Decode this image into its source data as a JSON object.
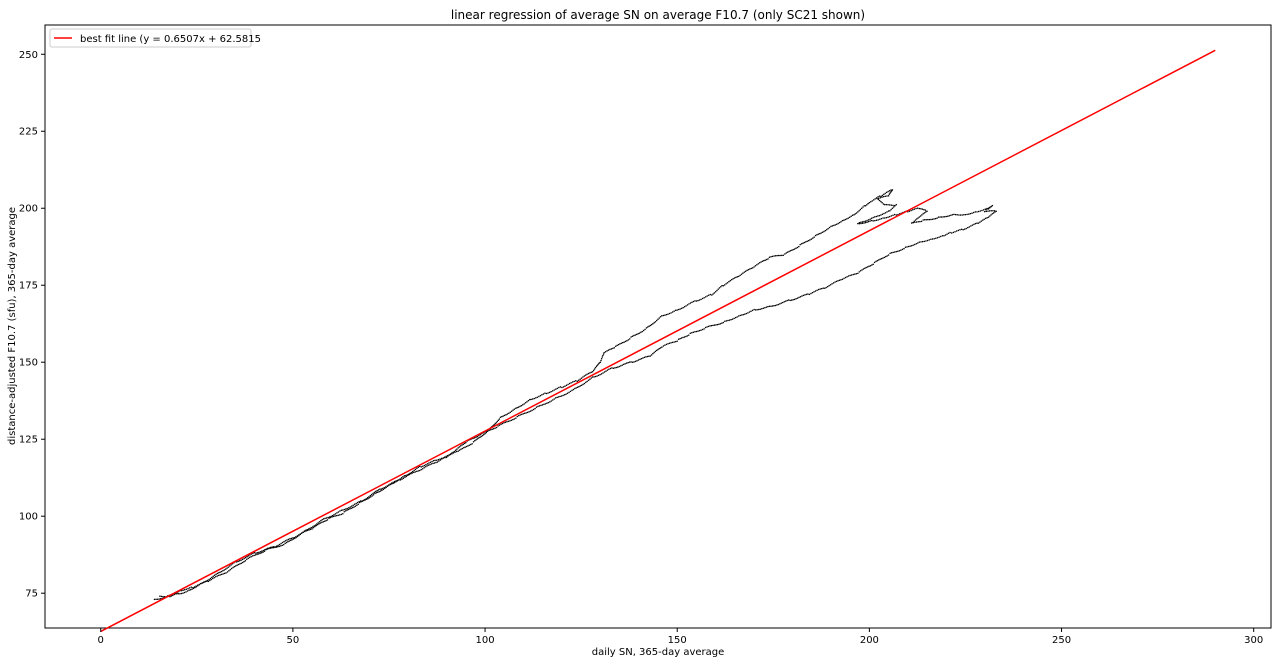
{
  "chart_data": {
    "type": "scatter",
    "title": "linear regression of average SN on average F10.7 (only SC21 shown)",
    "xlabel": "daily SN, 365-day average",
    "ylabel": "distance-adjusted F10.7 (sfu), 365-day average",
    "xlim": [
      -14.5,
      304.5
    ],
    "ylim": [
      63.7,
      259.5
    ],
    "xticks": [
      0,
      50,
      100,
      150,
      200,
      250,
      300
    ],
    "yticks": [
      75,
      100,
      125,
      150,
      175,
      200,
      250
    ],
    "yticks_all": [
      75,
      100,
      125,
      150,
      175,
      200,
      225,
      250
    ],
    "grid": false,
    "legend": {
      "placement": "top-left",
      "entries": [
        "best fit line (y = 0.6507x + 62.5815"
      ]
    },
    "fit_line": {
      "name": "best fit line (y = 0.6507x + 62.5815",
      "slope": 0.6507,
      "intercept": 62.5815,
      "x_range": [
        0,
        290
      ],
      "color": "#ff0000"
    },
    "scatter_color": "#000000",
    "rising_path": [
      [
        14,
        73
      ],
      [
        18,
        74
      ],
      [
        21,
        76
      ],
      [
        24,
        77
      ],
      [
        28,
        79
      ],
      [
        33,
        82
      ],
      [
        38,
        86
      ],
      [
        43,
        89
      ],
      [
        48,
        91
      ],
      [
        53,
        95
      ],
      [
        58,
        99
      ],
      [
        63,
        102
      ],
      [
        68,
        105
      ],
      [
        73,
        109
      ],
      [
        78,
        112
      ],
      [
        83,
        115
      ],
      [
        88,
        118
      ],
      [
        91,
        120
      ],
      [
        93,
        121
      ],
      [
        97,
        124
      ],
      [
        101,
        128
      ],
      [
        104,
        132
      ],
      [
        108,
        135
      ],
      [
        112,
        138
      ],
      [
        116,
        140
      ],
      [
        120,
        142
      ],
      [
        124,
        144
      ],
      [
        128,
        147
      ],
      [
        130,
        150
      ],
      [
        131,
        153
      ],
      [
        134,
        155
      ],
      [
        138,
        158
      ],
      [
        142,
        161
      ],
      [
        146,
        165
      ],
      [
        150,
        167
      ],
      [
        155,
        170
      ],
      [
        159,
        172
      ],
      [
        162,
        175
      ],
      [
        166,
        178
      ],
      [
        170,
        181
      ],
      [
        174,
        184
      ],
      [
        178,
        185
      ],
      [
        182,
        188
      ],
      [
        186,
        191
      ],
      [
        190,
        194
      ],
      [
        193,
        196
      ],
      [
        196,
        198
      ],
      [
        199,
        201
      ],
      [
        200,
        202
      ],
      [
        203,
        204
      ],
      [
        206,
        206
      ],
      [
        205,
        204
      ],
      [
        202,
        203
      ],
      [
        204,
        201
      ],
      [
        207,
        201
      ],
      [
        205,
        199
      ],
      [
        201,
        197
      ],
      [
        197,
        195
      ]
    ],
    "peak_path": [
      [
        197,
        195
      ],
      [
        201,
        196
      ],
      [
        204,
        197
      ],
      [
        207,
        198
      ],
      [
        210,
        199
      ],
      [
        213,
        200
      ],
      [
        215,
        199
      ],
      [
        213,
        197
      ],
      [
        211,
        195
      ],
      [
        214,
        196
      ],
      [
        218,
        197
      ],
      [
        222,
        198
      ],
      [
        225,
        198
      ],
      [
        228,
        199
      ],
      [
        231,
        200
      ],
      [
        232,
        201
      ],
      [
        230,
        199
      ],
      [
        233,
        199
      ],
      [
        231,
        197
      ],
      [
        228,
        195
      ],
      [
        224,
        193
      ],
      [
        221,
        192
      ],
      [
        219,
        191
      ],
      [
        216,
        190
      ],
      [
        213,
        189
      ]
    ],
    "declining_path": [
      [
        213,
        189
      ],
      [
        209,
        187
      ],
      [
        205,
        185
      ],
      [
        201,
        182
      ],
      [
        197,
        179
      ],
      [
        193,
        177
      ],
      [
        188,
        174
      ],
      [
        184,
        172
      ],
      [
        179,
        170
      ],
      [
        174,
        168
      ],
      [
        170,
        167
      ],
      [
        166,
        165
      ],
      [
        162,
        163
      ],
      [
        157,
        161
      ],
      [
        153,
        159
      ],
      [
        150,
        157
      ],
      [
        146,
        155
      ],
      [
        143,
        152
      ],
      [
        138,
        150
      ],
      [
        133,
        148
      ],
      [
        128,
        145
      ],
      [
        123,
        141
      ],
      [
        118,
        138
      ],
      [
        113,
        135
      ],
      [
        108,
        132
      ],
      [
        103,
        129
      ],
      [
        98,
        126
      ],
      [
        95,
        124
      ],
      [
        92,
        121
      ],
      [
        90,
        119
      ],
      [
        87,
        118
      ],
      [
        83,
        116
      ],
      [
        79,
        113
      ],
      [
        75,
        110
      ],
      [
        71,
        107
      ],
      [
        67,
        104
      ],
      [
        63,
        101
      ],
      [
        59,
        99
      ],
      [
        55,
        96
      ],
      [
        50,
        93
      ],
      [
        45,
        90
      ],
      [
        40,
        88
      ],
      [
        35,
        85
      ],
      [
        30,
        81
      ],
      [
        26,
        78
      ],
      [
        23,
        76
      ],
      [
        21,
        75
      ],
      [
        19,
        75
      ],
      [
        17,
        74
      ],
      [
        15,
        74
      ]
    ]
  }
}
